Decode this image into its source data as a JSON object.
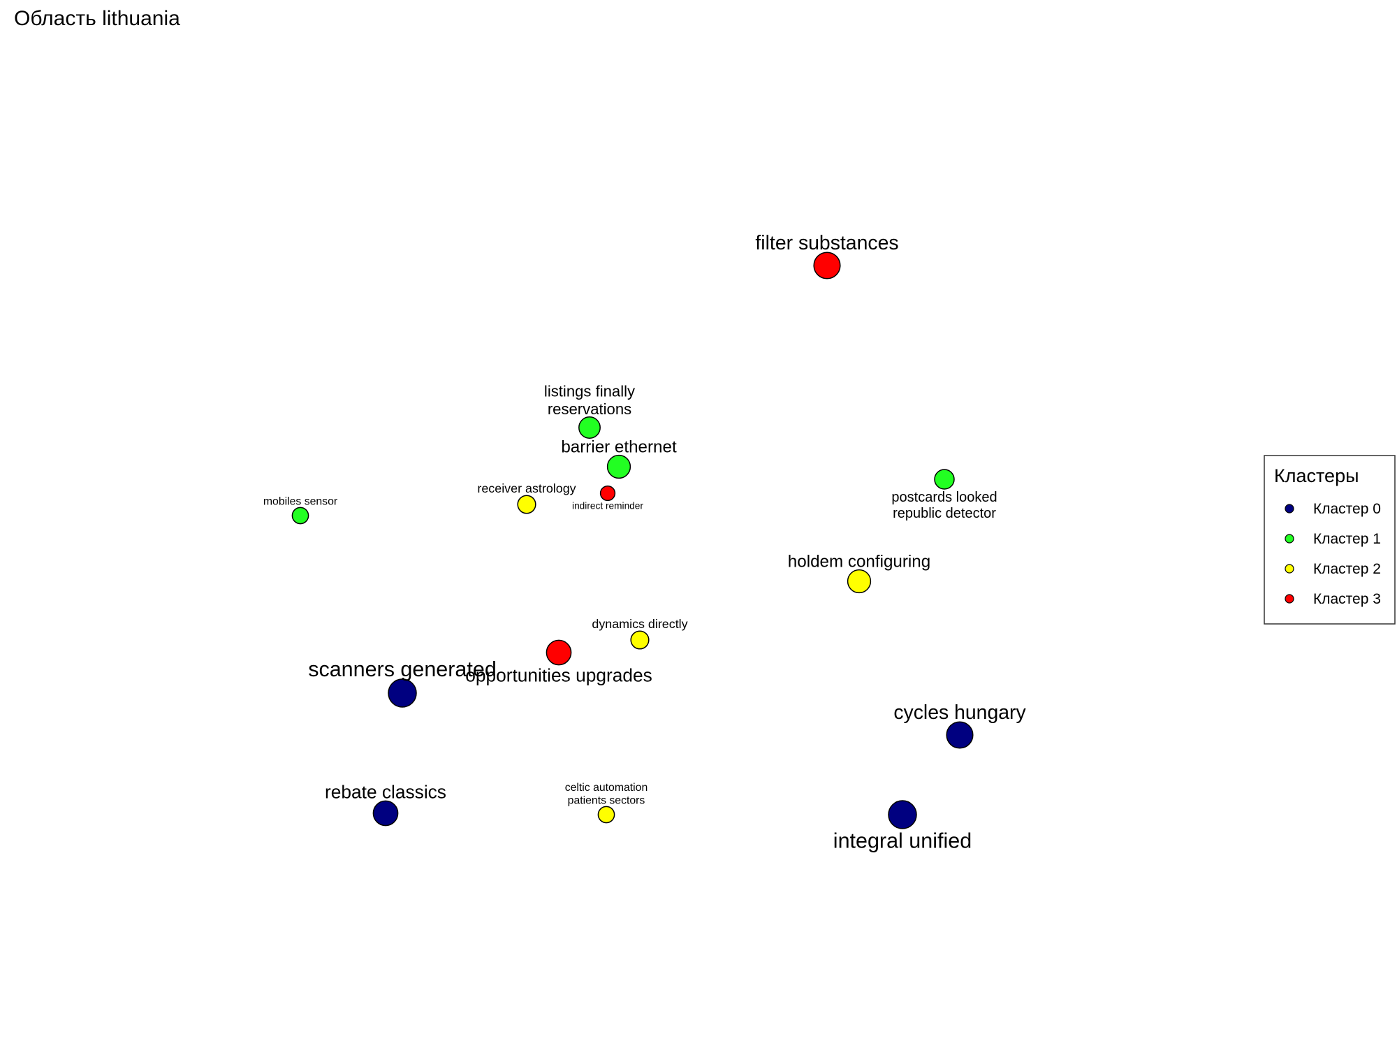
{
  "chart_data": {
    "type": "scatter",
    "title": "Область lithuania",
    "grid": false,
    "axes_visible": false,
    "xlim": [
      0,
      1000
    ],
    "ylim": [
      0,
      750
    ],
    "legend": {
      "title": "Кластеры",
      "placement": "right",
      "entries": [
        {
          "label": "Кластер 0",
          "color": "#000080"
        },
        {
          "label": "Кластер 1",
          "color": "#22ff22"
        },
        {
          "label": "Кластер 2",
          "color": "#ffff00"
        },
        {
          "label": "Кластер 3",
          "color": "#ff0000"
        }
      ]
    },
    "points": [
      {
        "label": [
          "filter substances"
        ],
        "x": 592,
        "y": 560,
        "cluster": 3,
        "weight": 9
      },
      {
        "label": [
          "listings finally",
          "reservations"
        ],
        "x": 422,
        "y": 444,
        "cluster": 1,
        "weight": 6
      },
      {
        "label": [
          "barrier ethernet"
        ],
        "x": 443,
        "y": 416,
        "cluster": 1,
        "weight": 7
      },
      {
        "label": [
          "indirect reminder"
        ],
        "x": 435,
        "y": 397,
        "cluster": 3,
        "weight": 2
      },
      {
        "label": [
          "postcards looked",
          "republic detector"
        ],
        "x": 676,
        "y": 407,
        "cluster": 1,
        "weight": 5
      },
      {
        "label": [
          "receiver astrology"
        ],
        "x": 377,
        "y": 389,
        "cluster": 2,
        "weight": 4
      },
      {
        "label": [
          "mobiles sensor"
        ],
        "x": 215,
        "y": 381,
        "cluster": 1,
        "weight": 3
      },
      {
        "label": [
          "holdem configuring"
        ],
        "x": 615,
        "y": 334,
        "cluster": 2,
        "weight": 7
      },
      {
        "label": [
          "dynamics directly"
        ],
        "x": 458,
        "y": 292,
        "cluster": 2,
        "weight": 4
      },
      {
        "label": [
          "opportunities upgrades"
        ],
        "x": 400,
        "y": 283,
        "cluster": 3,
        "weight": 8
      },
      {
        "label": [
          "scanners generated"
        ],
        "x": 288,
        "y": 254,
        "cluster": 0,
        "weight": 10
      },
      {
        "label": [
          "cycles hungary"
        ],
        "x": 687,
        "y": 224,
        "cluster": 0,
        "weight": 9
      },
      {
        "label": [
          "rebate classics"
        ],
        "x": 276,
        "y": 168,
        "cluster": 0,
        "weight": 8
      },
      {
        "label": [
          "celtic automation",
          "patients sectors"
        ],
        "x": 434,
        "y": 167,
        "cluster": 2,
        "weight": 3
      },
      {
        "label": [
          "integral unified"
        ],
        "x": 646,
        "y": 167,
        "cluster": 0,
        "weight": 10
      }
    ]
  }
}
